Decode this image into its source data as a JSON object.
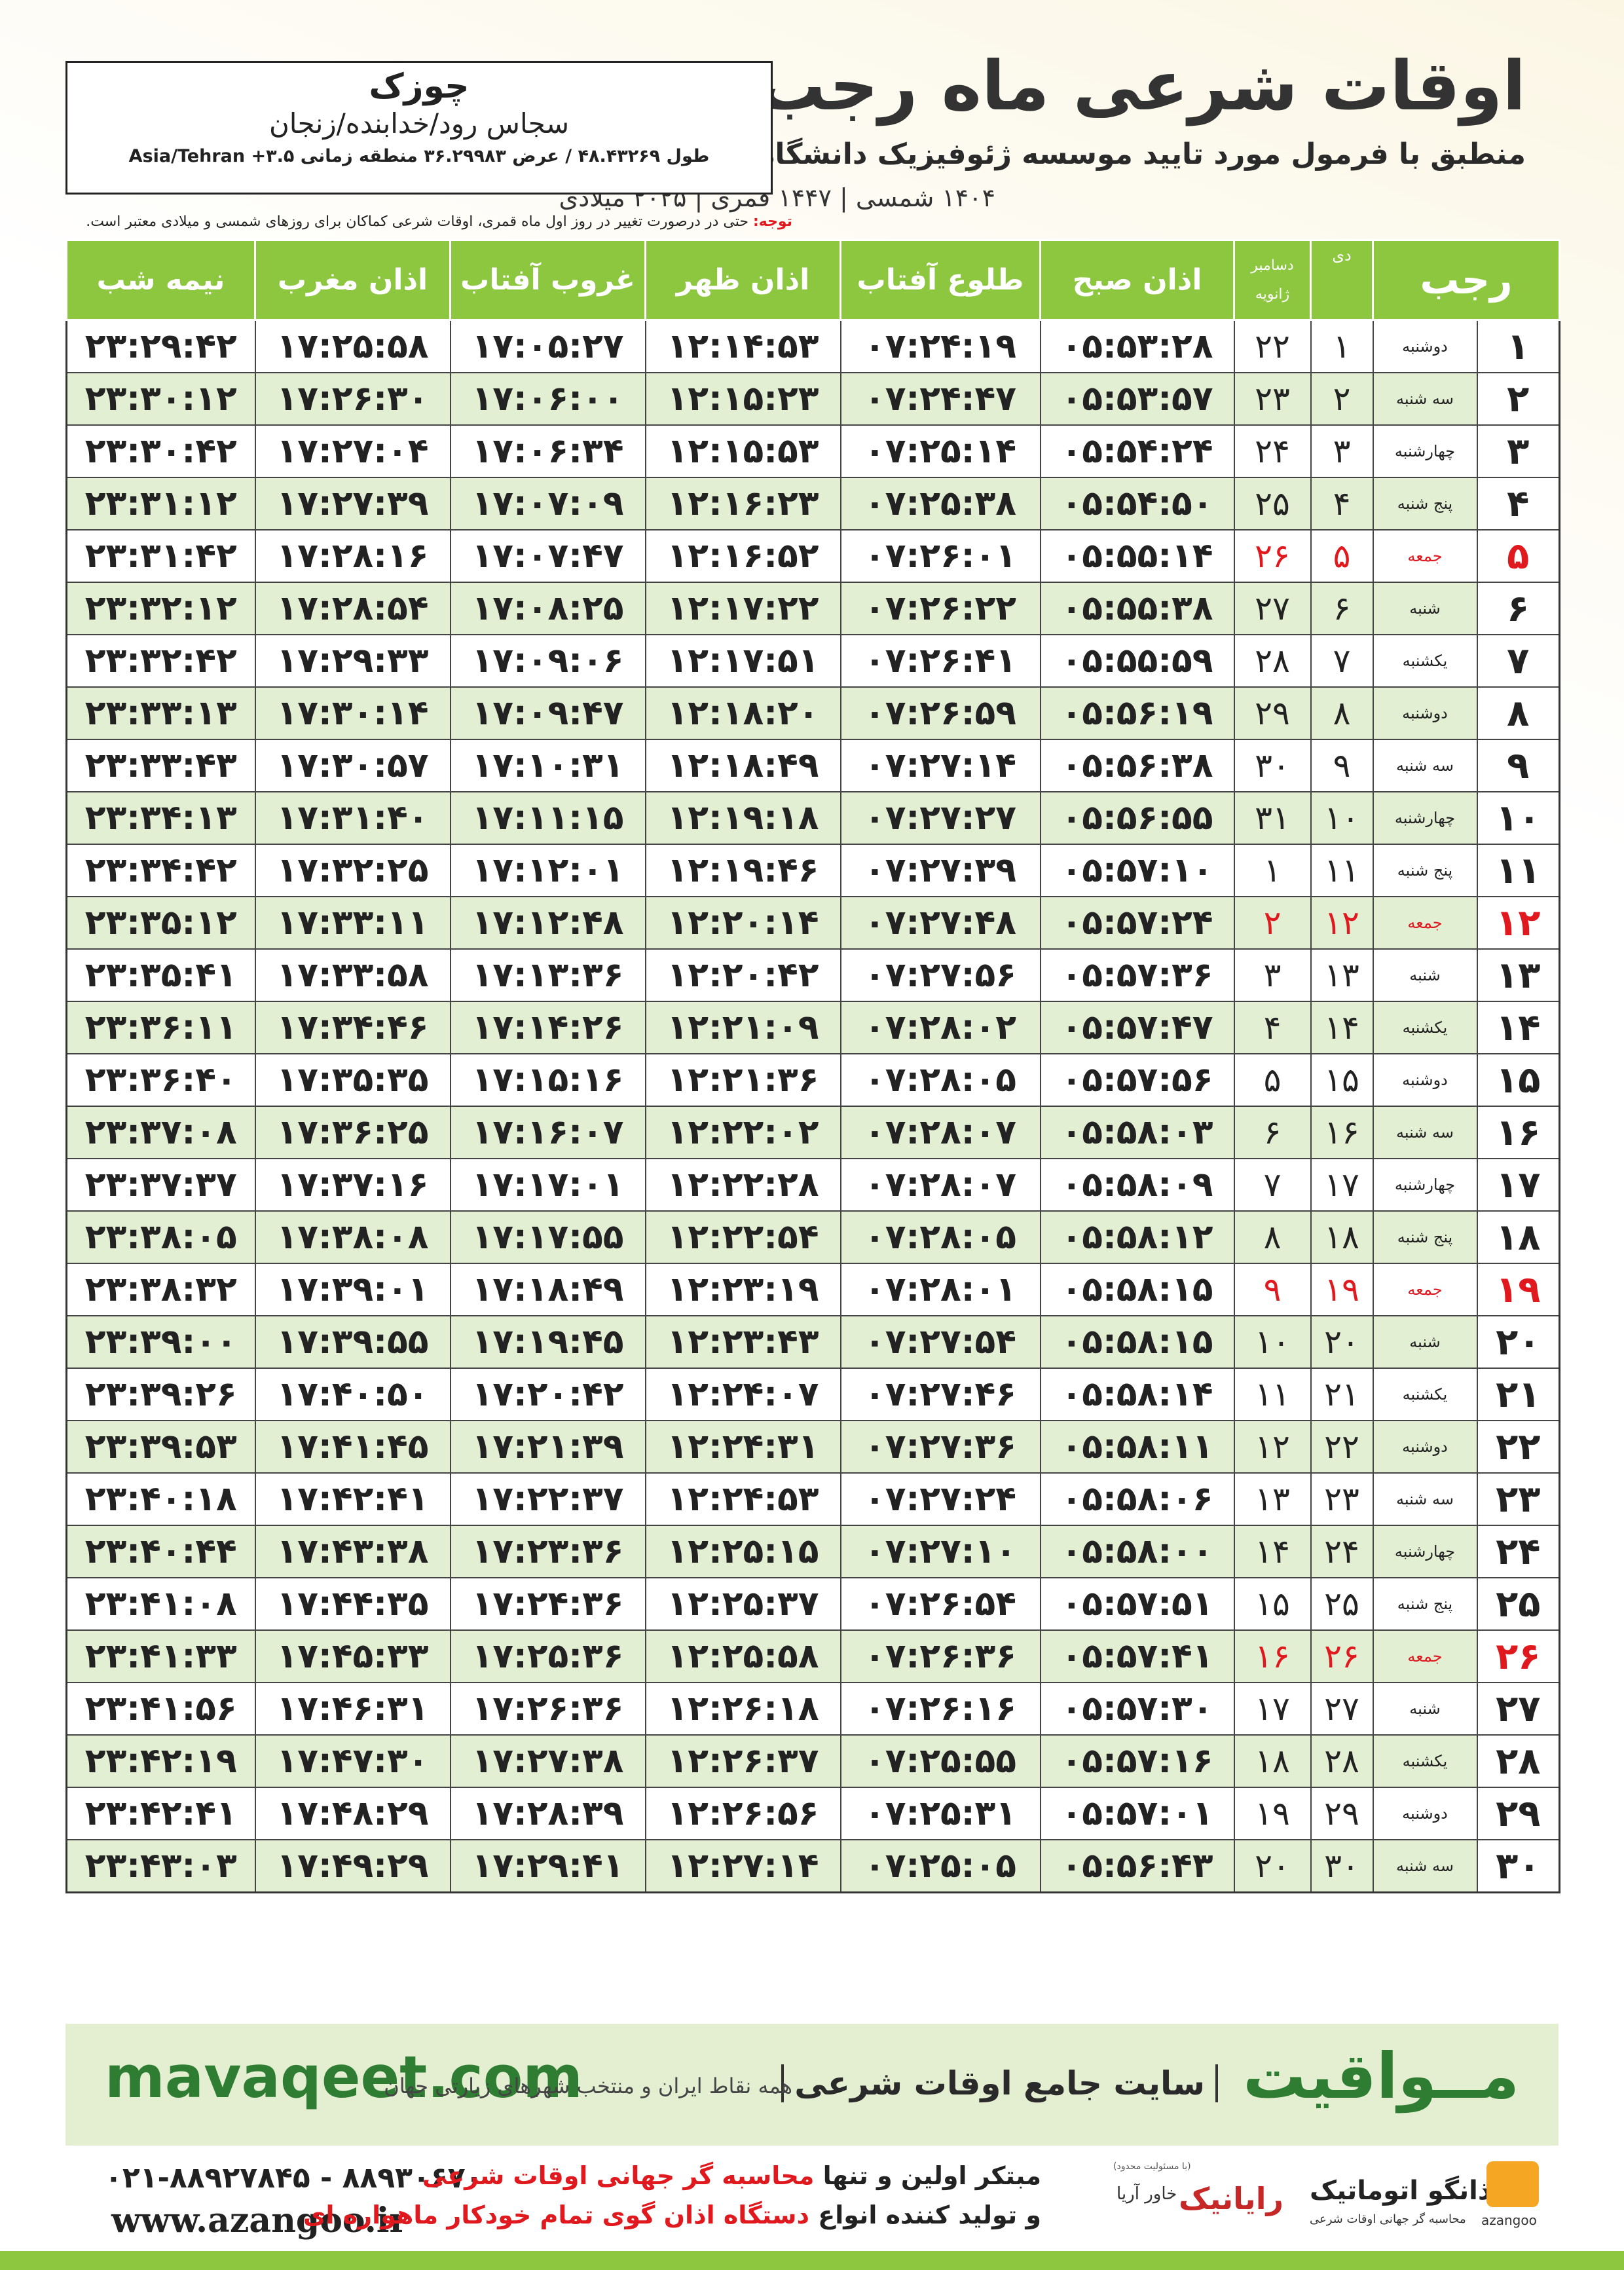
{
  "header": {
    "title": "اوقات شرعی ماه رجب",
    "subtitle": "منطبق با فرمول مورد تایید موسسه ژئوفیزیک دانشگاه تهران",
    "dates": "۱۴۰۴ شمسی | ۱۴۴۷ قمری | ۲۰۲۵ میلادی"
  },
  "location": {
    "city": "چوزک",
    "region": "سجاس رود/خدابنده/زنجان",
    "coords": "طول ۴۸.۴۳۲۶۹ / عرض ۳۶.۲۹۹۸۳ منطقه زمانی ۳.۵+ Asia/Tehran"
  },
  "note": {
    "label": "توجه:",
    "text": "حتی در درصورت تغییر در روز اول ماه قمری، اوقات شرعی کماکان برای روزهای شمسی و میلادی معتبر است."
  },
  "table": {
    "header": {
      "month": "رجب",
      "dey": "دی",
      "gregorian": [
        "دسامبر",
        "ژانویه"
      ],
      "times": [
        "اذان صبح",
        "طلوع آفتاب",
        "اذان ظهر",
        "غروب آفتاب",
        "اذان مغرب",
        "نیمه شب"
      ]
    },
    "rows": [
      {
        "cells": [
          "۱",
          "دوشنبه",
          "۱",
          "۲۲",
          "۰۵:۵۳:۲۸",
          "۰۷:۲۴:۱۹",
          "۱۲:۱۴:۵۳",
          "۱۷:۰۵:۲۷",
          "۱۷:۲۵:۵۸",
          "۲۳:۲۹:۴۲"
        ]
      },
      {
        "cells": [
          "۲",
          "سه شنبه",
          "۲",
          "۲۳",
          "۰۵:۵۳:۵۷",
          "۰۷:۲۴:۴۷",
          "۱۲:۱۵:۲۳",
          "۱۷:۰۶:۰۰",
          "۱۷:۲۶:۳۰",
          "۲۳:۳۰:۱۲"
        ]
      },
      {
        "cells": [
          "۳",
          "چهارشنبه",
          "۳",
          "۲۴",
          "۰۵:۵۴:۲۴",
          "۰۷:۲۵:۱۴",
          "۱۲:۱۵:۵۳",
          "۱۷:۰۶:۳۴",
          "۱۷:۲۷:۰۴",
          "۲۳:۳۰:۴۲"
        ]
      },
      {
        "cells": [
          "۴",
          "پنج شنبه",
          "۴",
          "۲۵",
          "۰۵:۵۴:۵۰",
          "۰۷:۲۵:۳۸",
          "۱۲:۱۶:۲۳",
          "۱۷:۰۷:۰۹",
          "۱۷:۲۷:۳۹",
          "۲۳:۳۱:۱۲"
        ]
      },
      {
        "cells": [
          "۵",
          "جمعه",
          "۵",
          "۲۶",
          "۰۵:۵۵:۱۴",
          "۰۷:۲۶:۰۱",
          "۱۲:۱۶:۵۲",
          "۱۷:۰۷:۴۷",
          "۱۷:۲۸:۱۶",
          "۲۳:۳۱:۴۲"
        ],
        "color": "#e0191f"
      },
      {
        "cells": [
          "۶",
          "شنبه",
          "۶",
          "۲۷",
          "۰۵:۵۵:۳۸",
          "۰۷:۲۶:۲۲",
          "۱۲:۱۷:۲۲",
          "۱۷:۰۸:۲۵",
          "۱۷:۲۸:۵۴",
          "۲۳:۳۲:۱۲"
        ]
      },
      {
        "cells": [
          "۷",
          "یکشنبه",
          "۷",
          "۲۸",
          "۰۵:۵۵:۵۹",
          "۰۷:۲۶:۴۱",
          "۱۲:۱۷:۵۱",
          "۱۷:۰۹:۰۶",
          "۱۷:۲۹:۳۳",
          "۲۳:۳۲:۴۲"
        ]
      },
      {
        "cells": [
          "۸",
          "دوشنبه",
          "۸",
          "۲۹",
          "۰۵:۵۶:۱۹",
          "۰۷:۲۶:۵۹",
          "۱۲:۱۸:۲۰",
          "۱۷:۰۹:۴۷",
          "۱۷:۳۰:۱۴",
          "۲۳:۳۳:۱۳"
        ]
      },
      {
        "cells": [
          "۹",
          "سه شنبه",
          "۹",
          "۳۰",
          "۰۵:۵۶:۳۸",
          "۰۷:۲۷:۱۴",
          "۱۲:۱۸:۴۹",
          "۱۷:۱۰:۳۱",
          "۱۷:۳۰:۵۷",
          "۲۳:۳۳:۴۳"
        ]
      },
      {
        "cells": [
          "۱۰",
          "چهارشنبه",
          "۱۰",
          "۳۱",
          "۰۵:۵۶:۵۵",
          "۰۷:۲۷:۲۷",
          "۱۲:۱۹:۱۸",
          "۱۷:۱۱:۱۵",
          "۱۷:۳۱:۴۰",
          "۲۳:۳۴:۱۳"
        ]
      },
      {
        "cells": [
          "۱۱",
          "پنج شنبه",
          "۱۱",
          "۱",
          "۰۵:۵۷:۱۰",
          "۰۷:۲۷:۳۹",
          "۱۲:۱۹:۴۶",
          "۱۷:۱۲:۰۱",
          "۱۷:۳۲:۲۵",
          "۲۳:۳۴:۴۲"
        ]
      },
      {
        "cells": [
          "۱۲",
          "جمعه",
          "۱۲",
          "۲",
          "۰۵:۵۷:۲۴",
          "۰۷:۲۷:۴۸",
          "۱۲:۲۰:۱۴",
          "۱۷:۱۲:۴۸",
          "۱۷:۳۳:۱۱",
          "۲۳:۳۵:۱۲"
        ],
        "color": "#e0191f"
      },
      {
        "cells": [
          "۱۳",
          "شنبه",
          "۱۳",
          "۳",
          "۰۵:۵۷:۳۶",
          "۰۷:۲۷:۵۶",
          "۱۲:۲۰:۴۲",
          "۱۷:۱۳:۳۶",
          "۱۷:۳۳:۵۸",
          "۲۳:۳۵:۴۱"
        ]
      },
      {
        "cells": [
          "۱۴",
          "یکشنبه",
          "۱۴",
          "۴",
          "۰۵:۵۷:۴۷",
          "۰۷:۲۸:۰۲",
          "۱۲:۲۱:۰۹",
          "۱۷:۱۴:۲۶",
          "۱۷:۳۴:۴۶",
          "۲۳:۳۶:۱۱"
        ]
      },
      {
        "cells": [
          "۱۵",
          "دوشنبه",
          "۱۵",
          "۵",
          "۰۵:۵۷:۵۶",
          "۰۷:۲۸:۰۵",
          "۱۲:۲۱:۳۶",
          "۱۷:۱۵:۱۶",
          "۱۷:۳۵:۳۵",
          "۲۳:۳۶:۴۰"
        ]
      },
      {
        "cells": [
          "۱۶",
          "سه شنبه",
          "۱۶",
          "۶",
          "۰۵:۵۸:۰۳",
          "۰۷:۲۸:۰۷",
          "۱۲:۲۲:۰۲",
          "۱۷:۱۶:۰۷",
          "۱۷:۳۶:۲۵",
          "۲۳:۳۷:۰۸"
        ]
      },
      {
        "cells": [
          "۱۷",
          "چهارشنبه",
          "۱۷",
          "۷",
          "۰۵:۵۸:۰۹",
          "۰۷:۲۸:۰۷",
          "۱۲:۲۲:۲۸",
          "۱۷:۱۷:۰۱",
          "۱۷:۳۷:۱۶",
          "۲۳:۳۷:۳۷"
        ]
      },
      {
        "cells": [
          "۱۸",
          "پنج شنبه",
          "۱۸",
          "۸",
          "۰۵:۵۸:۱۲",
          "۰۷:۲۸:۰۵",
          "۱۲:۲۲:۵۴",
          "۱۷:۱۷:۵۵",
          "۱۷:۳۸:۰۸",
          "۲۳:۳۸:۰۵"
        ]
      },
      {
        "cells": [
          "۱۹",
          "جمعه",
          "۱۹",
          "۹",
          "۰۵:۵۸:۱۵",
          "۰۷:۲۸:۰۱",
          "۱۲:۲۳:۱۹",
          "۱۷:۱۸:۴۹",
          "۱۷:۳۹:۰۱",
          "۲۳:۳۸:۳۲"
        ],
        "color": "#e0191f"
      },
      {
        "cells": [
          "۲۰",
          "شنبه",
          "۲۰",
          "۱۰",
          "۰۵:۵۸:۱۵",
          "۰۷:۲۷:۵۴",
          "۱۲:۲۳:۴۳",
          "۱۷:۱۹:۴۵",
          "۱۷:۳۹:۵۵",
          "۲۳:۳۹:۰۰"
        ]
      },
      {
        "cells": [
          "۲۱",
          "یکشنبه",
          "۲۱",
          "۱۱",
          "۰۵:۵۸:۱۴",
          "۰۷:۲۷:۴۶",
          "۱۲:۲۴:۰۷",
          "۱۷:۲۰:۴۲",
          "۱۷:۴۰:۵۰",
          "۲۳:۳۹:۲۶"
        ]
      },
      {
        "cells": [
          "۲۲",
          "دوشنبه",
          "۲۲",
          "۱۲",
          "۰۵:۵۸:۱۱",
          "۰۷:۲۷:۳۶",
          "۱۲:۲۴:۳۱",
          "۱۷:۲۱:۳۹",
          "۱۷:۴۱:۴۵",
          "۲۳:۳۹:۵۳"
        ]
      },
      {
        "cells": [
          "۲۳",
          "سه شنبه",
          "۲۳",
          "۱۳",
          "۰۵:۵۸:۰۶",
          "۰۷:۲۷:۲۴",
          "۱۲:۲۴:۵۳",
          "۱۷:۲۲:۳۷",
          "۱۷:۴۲:۴۱",
          "۲۳:۴۰:۱۸"
        ]
      },
      {
        "cells": [
          "۲۴",
          "چهارشنبه",
          "۲۴",
          "۱۴",
          "۰۵:۵۸:۰۰",
          "۰۷:۲۷:۱۰",
          "۱۲:۲۵:۱۵",
          "۱۷:۲۳:۳۶",
          "۱۷:۴۳:۳۸",
          "۲۳:۴۰:۴۴"
        ]
      },
      {
        "cells": [
          "۲۵",
          "پنج شنبه",
          "۲۵",
          "۱۵",
          "۰۵:۵۷:۵۱",
          "۰۷:۲۶:۵۴",
          "۱۲:۲۵:۳۷",
          "۱۷:۲۴:۳۶",
          "۱۷:۴۴:۳۵",
          "۲۳:۴۱:۰۸"
        ]
      },
      {
        "cells": [
          "۲۶",
          "جمعه",
          "۲۶",
          "۱۶",
          "۰۵:۵۷:۴۱",
          "۰۷:۲۶:۳۶",
          "۱۲:۲۵:۵۸",
          "۱۷:۲۵:۳۶",
          "۱۷:۴۵:۳۳",
          "۲۳:۴۱:۳۳"
        ],
        "color": "#e0191f"
      },
      {
        "cells": [
          "۲۷",
          "شنبه",
          "۲۷",
          "۱۷",
          "۰۵:۵۷:۳۰",
          "۰۷:۲۶:۱۶",
          "۱۲:۲۶:۱۸",
          "۱۷:۲۶:۳۶",
          "۱۷:۴۶:۳۱",
          "۲۳:۴۱:۵۶"
        ]
      },
      {
        "cells": [
          "۲۸",
          "یکشنبه",
          "۲۸",
          "۱۸",
          "۰۵:۵۷:۱۶",
          "۰۷:۲۵:۵۵",
          "۱۲:۲۶:۳۷",
          "۱۷:۲۷:۳۸",
          "۱۷:۴۷:۳۰",
          "۲۳:۴۲:۱۹"
        ]
      },
      {
        "cells": [
          "۲۹",
          "دوشنبه",
          "۲۹",
          "۱۹",
          "۰۵:۵۷:۰۱",
          "۰۷:۲۵:۳۱",
          "۱۲:۲۶:۵۶",
          "۱۷:۲۸:۳۹",
          "۱۷:۴۸:۲۹",
          "۲۳:۴۲:۴۱"
        ]
      },
      {
        "cells": [
          "۳۰",
          "سه شنبه",
          "۳۰",
          "۲۰",
          "۰۵:۵۶:۴۳",
          "۰۷:۲۵:۰۵",
          "۱۲:۲۷:۱۴",
          "۱۷:۲۹:۴۱",
          "۱۷:۴۹:۲۹",
          "۲۳:۴۳:۰۳"
        ]
      }
    ]
  },
  "footer": {
    "site": "mavaqeet.com",
    "brand": "مــواقیت",
    "slogan": "سایت جامع اوقات شرعی",
    "scope": "همه نقاط ایران و منتخب شهرهای زیارتی جهان"
  },
  "bottom": {
    "phones": "۰۲۱-۸۸۹۲۷۸۴۵ - ۸۸۹۳۰۶۷۰",
    "website": "www.azangoo.ir",
    "line1_prefix": "مبتکر اولین و تنها",
    "line1_highlight": "محاسبه گر جهانی اوقات شرعی",
    "line2_prefix": "و تولید کننده انواع",
    "line2_highlight": "دستگاه اذان گوی تمام خودکار ماهواره ای",
    "partner_note": "(با مسئولیت محدود)",
    "partner": "رایانیک",
    "partner_sub": "خاور آریا",
    "logo": "اذانگو اتوماتیک",
    "logo_sub": "محاسبه گر جهانی اوقات شرعی",
    "logo_latin": "azangoo"
  }
}
